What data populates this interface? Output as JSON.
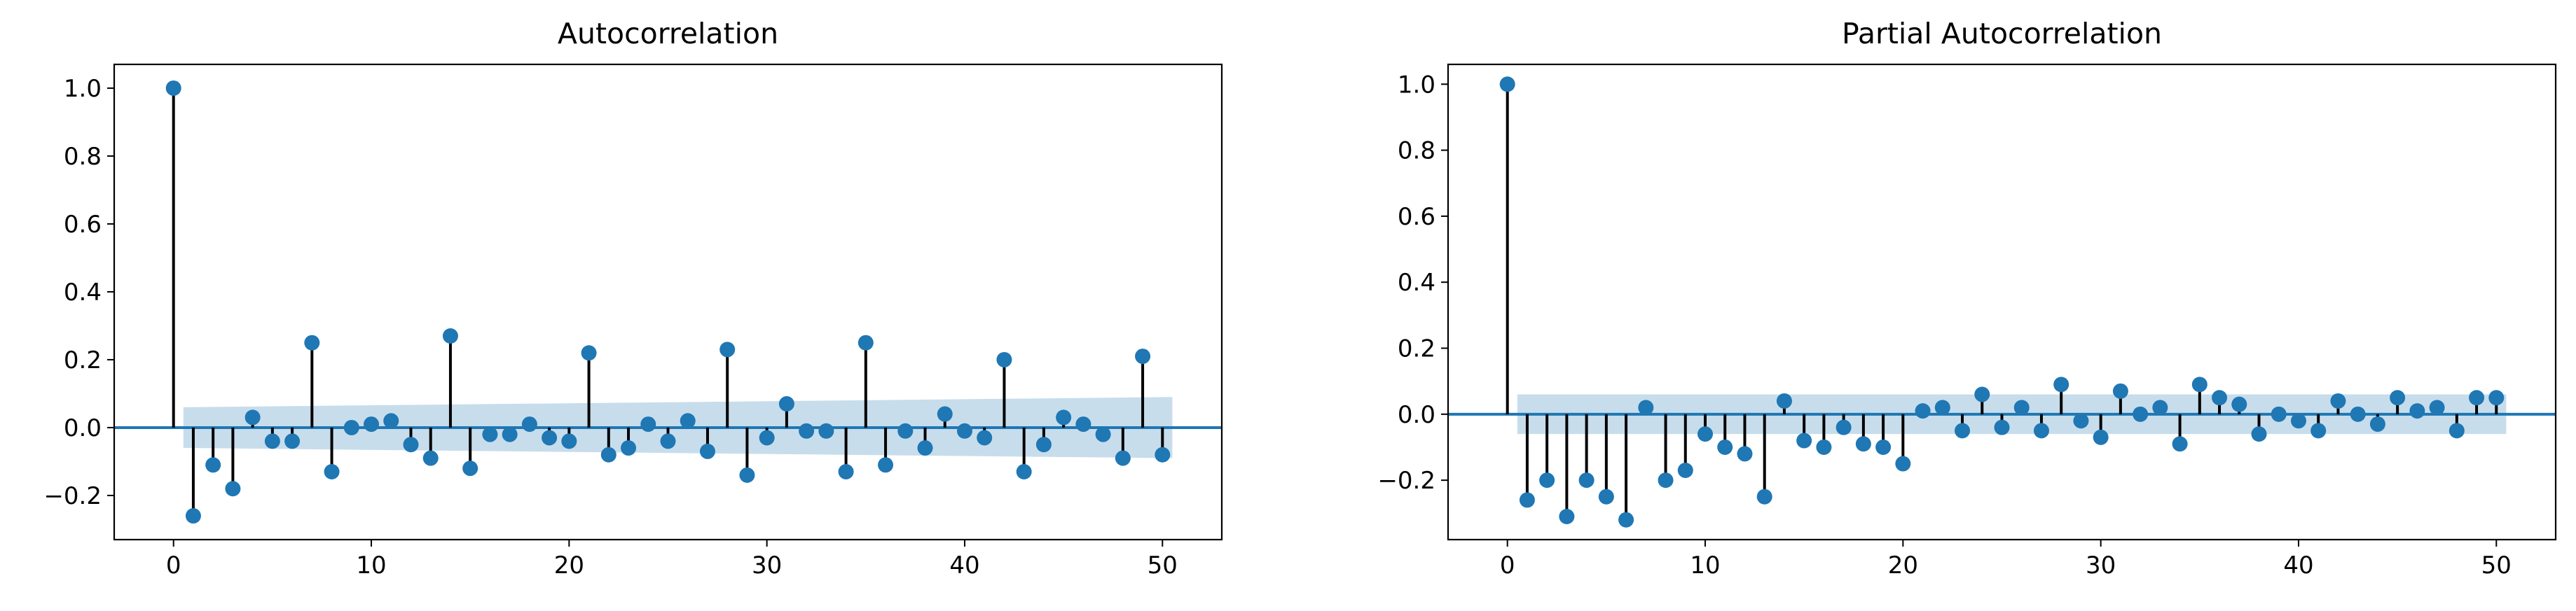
{
  "figure": {
    "colors": {
      "marker": "#1f77b4",
      "stem": "#000000",
      "band": "#1f77b4",
      "axis": "#000000"
    }
  },
  "chart_data": [
    {
      "type": "stem",
      "title": "Autocorrelation",
      "xlabel": "",
      "ylabel": "",
      "xlim": [
        -3,
        53
      ],
      "ylim": [
        -0.33,
        1.07
      ],
      "xticks": [
        0,
        10,
        20,
        30,
        40,
        50
      ],
      "xtick_labels": [
        "0",
        "10",
        "20",
        "30",
        "40",
        "50"
      ],
      "yticks": [
        -0.2,
        0.0,
        0.2,
        0.4,
        0.6,
        0.8,
        1.0
      ],
      "ytick_labels": [
        "−0.2",
        "0.0",
        "0.2",
        "0.4",
        "0.6",
        "0.8",
        "1.0"
      ],
      "grid": false,
      "x": [
        0,
        1,
        2,
        3,
        4,
        5,
        6,
        7,
        8,
        9,
        10,
        11,
        12,
        13,
        14,
        15,
        16,
        17,
        18,
        19,
        20,
        21,
        22,
        23,
        24,
        25,
        26,
        27,
        28,
        29,
        30,
        31,
        32,
        33,
        34,
        35,
        36,
        37,
        38,
        39,
        40,
        41,
        42,
        43,
        44,
        45,
        46,
        47,
        48,
        49,
        50
      ],
      "values": [
        1.0,
        -0.26,
        -0.11,
        -0.18,
        0.03,
        -0.04,
        -0.04,
        0.25,
        -0.13,
        0.0,
        0.01,
        0.02,
        -0.05,
        -0.09,
        0.27,
        -0.12,
        -0.02,
        -0.02,
        0.01,
        -0.03,
        -0.04,
        0.22,
        -0.08,
        -0.06,
        0.01,
        -0.04,
        0.02,
        -0.07,
        0.23,
        -0.14,
        -0.03,
        0.07,
        -0.01,
        -0.01,
        -0.13,
        0.25,
        -0.11,
        -0.01,
        -0.06,
        0.04,
        -0.01,
        -0.03,
        0.2,
        -0.13,
        -0.05,
        0.03,
        0.01,
        -0.02,
        -0.09,
        0.21,
        -0.08
      ],
      "confidence_band": {
        "x": [
          0.5,
          50.5
        ],
        "upper": [
          0.06,
          0.09
        ],
        "lower": [
          -0.06,
          -0.09
        ]
      }
    },
    {
      "type": "stem",
      "title": "Partial Autocorrelation",
      "xlabel": "",
      "ylabel": "",
      "xlim": [
        -3,
        53
      ],
      "ylim": [
        -0.38,
        1.06
      ],
      "xticks": [
        0,
        10,
        20,
        30,
        40,
        50
      ],
      "xtick_labels": [
        "0",
        "10",
        "20",
        "30",
        "40",
        "50"
      ],
      "yticks": [
        -0.2,
        0.0,
        0.2,
        0.4,
        0.6,
        0.8,
        1.0
      ],
      "ytick_labels": [
        "−0.2",
        "0.0",
        "0.2",
        "0.4",
        "0.6",
        "0.8",
        "1.0"
      ],
      "grid": false,
      "x": [
        0,
        1,
        2,
        3,
        4,
        5,
        6,
        7,
        8,
        9,
        10,
        11,
        12,
        13,
        14,
        15,
        16,
        17,
        18,
        19,
        20,
        21,
        22,
        23,
        24,
        25,
        26,
        27,
        28,
        29,
        30,
        31,
        32,
        33,
        34,
        35,
        36,
        37,
        38,
        39,
        40,
        41,
        42,
        43,
        44,
        45,
        46,
        47,
        48,
        49,
        50
      ],
      "values": [
        1.0,
        -0.26,
        -0.2,
        -0.31,
        -0.2,
        -0.25,
        -0.32,
        0.02,
        -0.2,
        -0.17,
        -0.06,
        -0.1,
        -0.12,
        -0.25,
        0.04,
        -0.08,
        -0.1,
        -0.04,
        -0.09,
        -0.1,
        -0.15,
        0.01,
        0.02,
        -0.05,
        0.06,
        -0.04,
        0.02,
        -0.05,
        0.09,
        -0.02,
        -0.07,
        0.07,
        0.0,
        0.02,
        -0.09,
        0.09,
        0.05,
        0.03,
        -0.06,
        0.0,
        -0.02,
        -0.05,
        0.04,
        0.0,
        -0.03,
        0.05,
        0.01,
        0.02,
        -0.05,
        0.05,
        0.05
      ],
      "confidence_band": {
        "x": [
          0.5,
          50.5
        ],
        "upper": [
          0.06,
          0.06
        ],
        "lower": [
          -0.06,
          -0.06
        ]
      }
    }
  ]
}
